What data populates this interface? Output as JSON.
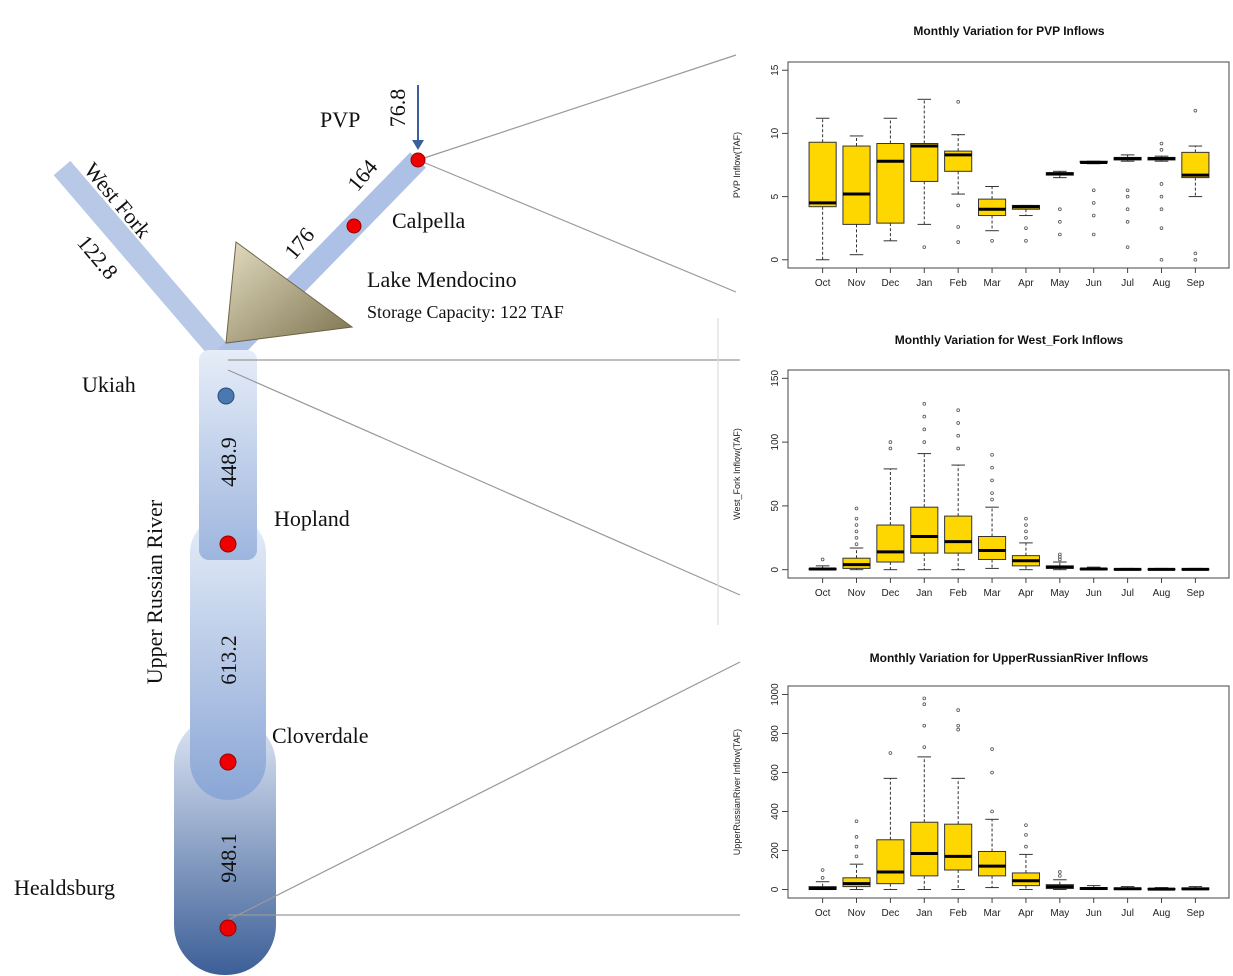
{
  "diagram": {
    "labels": {
      "pvp": "PVP",
      "pvp_flow": "76.8",
      "flow_164": "164",
      "flow_176": "176",
      "calpella": "Calpella",
      "west_fork": "West Fork",
      "west_fork_flow": "122.8",
      "lake": "Lake Mendocino",
      "storage": "Storage Capacity: 122 TAF",
      "ukiah": "Ukiah",
      "flow_ukiah": "448.9",
      "hopland": "Hopland",
      "river": "Upper Russian River",
      "flow_hopland": "613.2",
      "cloverdale": "Cloverdale",
      "flow_cloverdale": "948.1",
      "healdsburg": "Healdsburg"
    }
  },
  "chart_data": [
    {
      "type": "box",
      "title": "Monthly Variation for PVP Inflows",
      "ylabel": "PVP Inflow(TAF)",
      "categories": [
        "Oct",
        "Nov",
        "Dec",
        "Jan",
        "Feb",
        "Mar",
        "Apr",
        "May",
        "Jun",
        "Jul",
        "Aug",
        "Sep"
      ],
      "ylim": [
        0,
        15
      ],
      "yticks": [
        0,
        5,
        10,
        15
      ],
      "color": "#ffd700",
      "series": [
        {
          "min": [
            0,
            0.4,
            1.5,
            2.8,
            5.2,
            2.3,
            3.5,
            6.5,
            7.6,
            7.8,
            7.8,
            5.0
          ],
          "q1": [
            4.2,
            2.8,
            2.9,
            6.2,
            7.0,
            3.5,
            4.0,
            6.7,
            7.7,
            7.9,
            7.9,
            6.5
          ],
          "median": [
            4.5,
            5.2,
            7.8,
            9.0,
            8.3,
            4.0,
            4.2,
            6.8,
            7.7,
            8.0,
            8.0,
            6.7
          ],
          "q3": [
            9.3,
            9.0,
            9.2,
            9.2,
            8.6,
            4.8,
            4.3,
            6.9,
            7.8,
            8.1,
            8.1,
            8.5
          ],
          "max": [
            11.2,
            9.8,
            11.2,
            12.7,
            9.9,
            5.8,
            4.3,
            7.0,
            7.8,
            8.3,
            8.2,
            9.0
          ],
          "outliers": [
            [],
            [],
            [],
            [
              1.0
            ],
            [
              12.5,
              4.3,
              2.6,
              1.4
            ],
            [
              1.5
            ],
            [
              2.5,
              1.5
            ],
            [
              4,
              3,
              2
            ],
            [
              5.5,
              4.5,
              3.5,
              2
            ],
            [
              5.5,
              5,
              4,
              3,
              1
            ],
            [
              9.2,
              8.7,
              6,
              5,
              4,
              2.5,
              0
            ],
            [
              11.8,
              0.5,
              0
            ]
          ]
        }
      ]
    },
    {
      "type": "box",
      "title": "Monthly Variation for West_Fork Inflows",
      "ylabel": "West_Fork Inflow(TAF)",
      "categories": [
        "Oct",
        "Nov",
        "Dec",
        "Jan",
        "Feb",
        "Mar",
        "Apr",
        "May",
        "Jun",
        "Jul",
        "Aug",
        "Sep"
      ],
      "ylim": [
        0,
        150
      ],
      "yticks": [
        0,
        50,
        100,
        150
      ],
      "color": "#ffd700",
      "series": [
        {
          "min": [
            0,
            0,
            0,
            0,
            0,
            1,
            0,
            0,
            0,
            0,
            0,
            0
          ],
          "q1": [
            0,
            1,
            6,
            13,
            13,
            8,
            3,
            1,
            0,
            0,
            0,
            0
          ],
          "median": [
            0.5,
            4,
            14,
            26,
            22,
            15,
            7,
            2,
            0.5,
            0.2,
            0.2,
            0.2
          ],
          "q3": [
            1,
            9,
            35,
            49,
            42,
            26,
            11,
            3,
            1,
            0.5,
            0.5,
            0.5
          ],
          "max": [
            3,
            17,
            79,
            91,
            82,
            49,
            21,
            6,
            2,
            1,
            1,
            1
          ],
          "outliers": [
            [
              8
            ],
            [
              20,
              25,
              30,
              35,
              40,
              48
            ],
            [
              95,
              100
            ],
            [
              100,
              110,
              120,
              130
            ],
            [
              95,
              105,
              115,
              125
            ],
            [
              55,
              60,
              70,
              80,
              90
            ],
            [
              25,
              30,
              35,
              40
            ],
            [
              8,
              10,
              12
            ],
            [],
            [],
            [],
            []
          ]
        }
      ]
    },
    {
      "type": "box",
      "title": "Monthly Variation for UpperRussianRiver Inflows",
      "ylabel": "UpperRussianRiver Inflow(TAF)",
      "categories": [
        "Oct",
        "Nov",
        "Dec",
        "Jan",
        "Feb",
        "Mar",
        "Apr",
        "May",
        "Jun",
        "Jul",
        "Aug",
        "Sep"
      ],
      "ylim": [
        0,
        1000
      ],
      "yticks": [
        0,
        200,
        400,
        600,
        800,
        1000
      ],
      "color": "#ffd700",
      "series": [
        {
          "min": [
            0,
            0,
            0,
            0,
            0,
            10,
            0,
            0,
            0,
            0,
            0,
            0
          ],
          "q1": [
            0,
            15,
            30,
            70,
            100,
            70,
            20,
            5,
            0,
            0,
            0,
            0
          ],
          "median": [
            5,
            30,
            90,
            185,
            170,
            120,
            45,
            15,
            5,
            4,
            2,
            3
          ],
          "q3": [
            15,
            60,
            255,
            345,
            335,
            195,
            85,
            25,
            10,
            8,
            5,
            8
          ],
          "max": [
            40,
            130,
            570,
            680,
            570,
            360,
            180,
            50,
            20,
            15,
            10,
            15
          ],
          "outliers": [
            [
              60,
              100
            ],
            [
              170,
              220,
              270,
              350
            ],
            [
              700
            ],
            [
              730,
              840,
              950,
              980
            ],
            [
              820,
              840,
              920
            ],
            [
              400,
              600,
              720
            ],
            [
              220,
              280,
              330
            ],
            [
              70,
              90
            ],
            [],
            [],
            [],
            []
          ]
        }
      ]
    }
  ]
}
